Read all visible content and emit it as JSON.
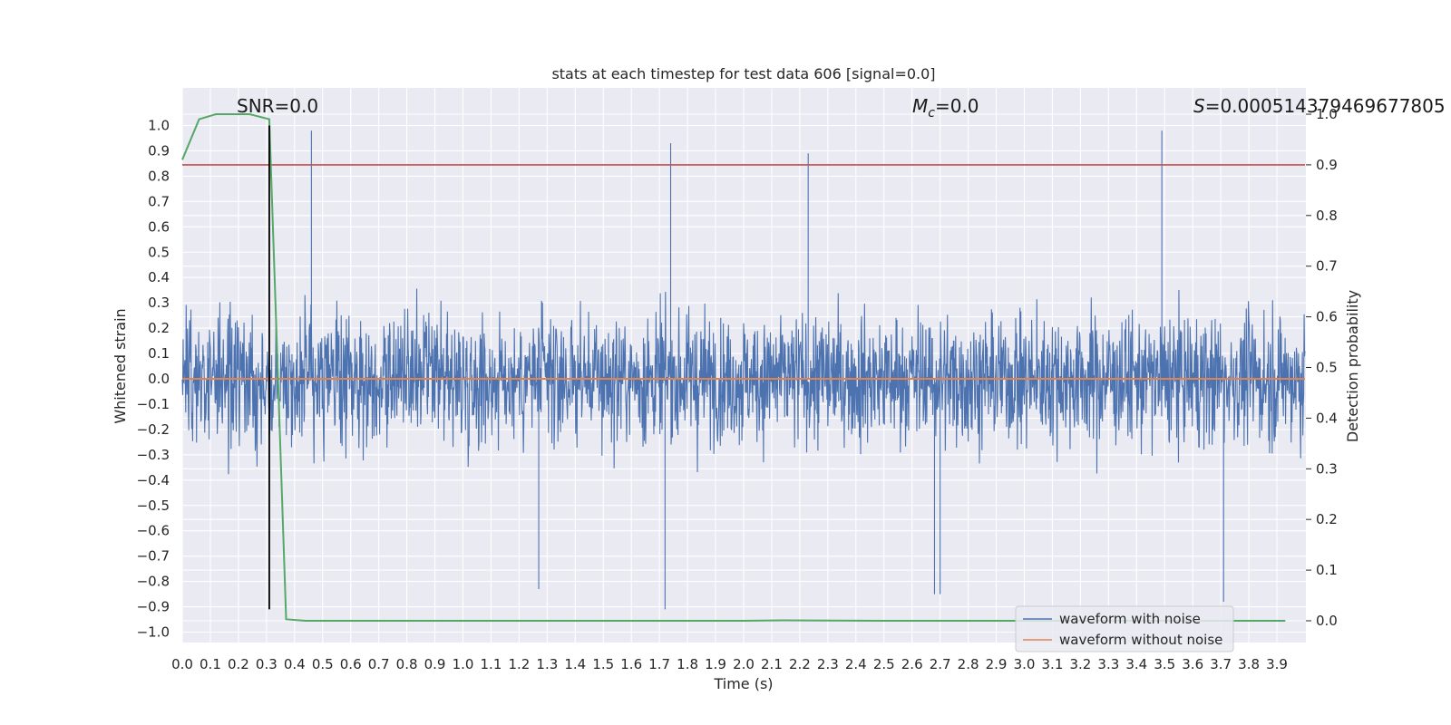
{
  "chart_data": {
    "type": "line",
    "title": "stats at each timestep for test data 606 [signal=0.0]",
    "xlabel": "Time (s)",
    "ylabel": "Whitened strain",
    "y2label": "Detection probability",
    "xlim": [
      0.0,
      4.0
    ],
    "ylim": [
      -1.0,
      1.08
    ],
    "y2lim": [
      -0.045,
      1.02
    ],
    "grid": true,
    "legend_position": "lower-right",
    "x_ticks": [
      "0.0",
      "0.1",
      "0.2",
      "0.3",
      "0.4",
      "0.5",
      "0.6",
      "0.7",
      "0.8",
      "0.9",
      "1.0",
      "1.1",
      "1.2",
      "1.3",
      "1.4",
      "1.5",
      "1.6",
      "1.7",
      "1.8",
      "1.9",
      "2.0",
      "2.1",
      "2.2",
      "2.3",
      "2.4",
      "2.5",
      "2.6",
      "2.7",
      "2.8",
      "2.9",
      "3.0",
      "3.1",
      "3.2",
      "3.3",
      "3.4",
      "3.5",
      "3.6",
      "3.7",
      "3.8",
      "3.9"
    ],
    "y_ticks": [
      "1.0",
      "0.9",
      "0.8",
      "0.7",
      "0.6",
      "0.5",
      "0.4",
      "0.3",
      "0.2",
      "0.1",
      "0.0",
      "−0.1",
      "−0.2",
      "−0.3",
      "−0.4",
      "−0.5",
      "−0.6",
      "−0.7",
      "−0.8",
      "−0.9",
      "−1.0"
    ],
    "y2_ticks": [
      "1.0",
      "0.9",
      "0.8",
      "0.7",
      "0.6",
      "0.5",
      "0.4",
      "0.3",
      "0.2",
      "0.1",
      "0.0"
    ],
    "annotations": {
      "snr": "SNR=0.0",
      "mc_symbol": "M",
      "mc_sub": "c",
      "mc_value": "=0.0",
      "s_symbol": "S",
      "s_value": "=0.0005143794696778​05"
    },
    "series": [
      {
        "name": "waveform with noise",
        "color": "#4c72b0",
        "style": "noise",
        "amplitude": 0.42,
        "peak_max": 0.98,
        "peak_min": -0.91,
        "peaks": [
          [
            0.46,
            0.98
          ],
          [
            1.74,
            0.93
          ],
          [
            2.23,
            0.89
          ],
          [
            3.49,
            0.98
          ],
          [
            1.72,
            -0.91
          ],
          [
            3.71,
            -0.88
          ],
          [
            1.27,
            -0.83
          ],
          [
            2.68,
            -0.85
          ],
          [
            2.7,
            -0.85
          ]
        ]
      },
      {
        "name": "waveform without noise",
        "color": "#dd8452",
        "x": [
          0.0,
          4.0
        ],
        "y": [
          0.0,
          0.0
        ]
      },
      {
        "name": "detection probability",
        "color": "#55a868",
        "axis": "right",
        "x": [
          0.0,
          0.06,
          0.12,
          0.18,
          0.24,
          0.31,
          0.37,
          0.44,
          0.5,
          1.0,
          1.5,
          2.0,
          2.14,
          2.5,
          3.0,
          3.5,
          3.93
        ],
        "y": [
          0.91,
          0.99,
          1.0,
          1.0,
          1.0,
          0.99,
          0.003,
          0.0,
          0.0,
          0.0,
          0.0,
          0.0,
          0.001,
          0.0,
          0.0,
          0.0,
          0.0
        ]
      },
      {
        "name": "threshold",
        "color": "#c44e52",
        "axis": "right",
        "x": [
          0.0,
          4.0
        ],
        "y": [
          0.9,
          0.9
        ]
      },
      {
        "name": "marker",
        "color": "#000000",
        "x": [
          0.31,
          0.31
        ],
        "y": [
          -0.91,
          1.0
        ]
      }
    ],
    "legend": [
      "waveform with noise",
      "waveform without noise"
    ]
  }
}
